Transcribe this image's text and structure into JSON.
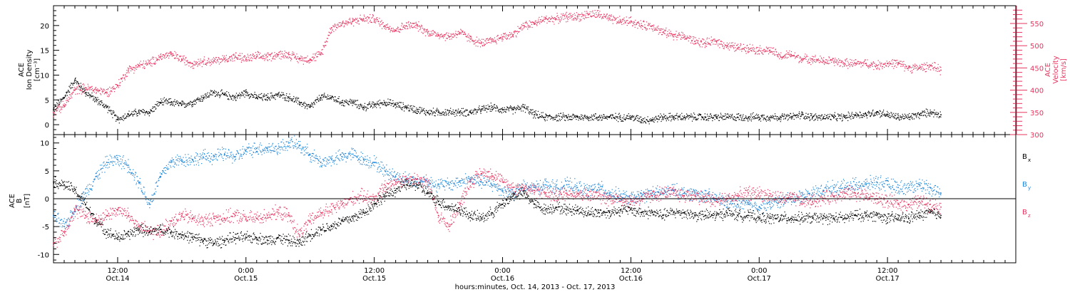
{
  "colors": {
    "black": "#000000",
    "red": "#e8345f",
    "blue": "#1e86d9"
  },
  "chart_data": [
    {
      "type": "scatter",
      "panel": "top",
      "left_axis": {
        "label_lines": [
          "ACE",
          "Ion Density",
          "[cm⁻³]"
        ],
        "ylim": [
          -2,
          24
        ],
        "ticks": [
          0,
          5,
          10,
          15,
          20
        ],
        "tick_labels": [
          "0",
          "5",
          "10",
          "15",
          "20"
        ]
      },
      "right_axis": {
        "label_lines": [
          "ACE",
          "Velocity",
          "[km/s]"
        ],
        "ylim": [
          300,
          590
        ],
        "ticks": [
          300,
          350,
          400,
          450,
          500,
          550
        ],
        "tick_labels": [
          "300",
          "350",
          "400",
          "450",
          "500",
          "550"
        ]
      },
      "series": [
        {
          "axis": "left",
          "color": "#000000",
          "t": [
            6,
            7,
            8,
            9,
            10,
            11,
            12,
            13,
            14,
            15,
            16,
            17,
            18,
            19,
            20,
            21,
            22,
            23,
            24,
            25,
            26,
            27,
            28,
            29,
            30,
            31,
            32,
            33,
            34,
            35,
            36,
            37,
            38,
            39,
            40,
            41,
            42,
            43,
            44,
            45,
            46,
            47,
            48,
            49,
            50,
            51,
            52,
            53,
            54,
            55,
            56,
            57,
            58,
            59,
            60,
            61,
            62,
            63,
            64,
            65,
            66,
            67,
            68,
            69,
            70,
            71,
            72,
            73,
            74,
            75,
            76,
            77,
            78,
            79,
            80,
            81,
            82,
            83,
            84,
            85,
            86,
            87,
            88,
            89
          ],
          "values": [
            3.0,
            5.5,
            9.0,
            6.5,
            5.0,
            3.5,
            1.0,
            2.0,
            2.5,
            2.5,
            4.5,
            4.5,
            4.0,
            4.5,
            5.5,
            6.5,
            6.0,
            5.5,
            6.5,
            5.5,
            5.5,
            6.0,
            5.5,
            4.5,
            3.5,
            5.5,
            5.5,
            4.5,
            4.5,
            3.5,
            4.0,
            4.5,
            4.0,
            3.5,
            3.0,
            2.5,
            2.5,
            2.5,
            2.5,
            2.5,
            3.0,
            3.5,
            3.0,
            3.0,
            3.5,
            2.0,
            1.5,
            1.5,
            1.5,
            1.5,
            1.5,
            1.5,
            1.5,
            1.5,
            1.5,
            1.0,
            1.0,
            1.5,
            1.5,
            1.5,
            1.5,
            1.5,
            1.5,
            1.5,
            1.5,
            1.5,
            1.5,
            1.5,
            1.5,
            1.5,
            2.0,
            1.5,
            1.5,
            1.5,
            1.5,
            2.0,
            2.0,
            2.5,
            2.0,
            1.5,
            1.5,
            2.0,
            2.5,
            2.0
          ]
        },
        {
          "axis": "right",
          "color": "#e8345f",
          "t": [
            6,
            7,
            8,
            9,
            10,
            11,
            12,
            13,
            14,
            15,
            16,
            17,
            18,
            19,
            20,
            21,
            22,
            23,
            24,
            25,
            26,
            27,
            28,
            29,
            30,
            31,
            32,
            33,
            34,
            35,
            36,
            37,
            38,
            39,
            40,
            41,
            42,
            43,
            44,
            45,
            46,
            47,
            48,
            49,
            50,
            51,
            52,
            53,
            54,
            55,
            56,
            57,
            58,
            59,
            60,
            61,
            62,
            63,
            64,
            65,
            66,
            67,
            68,
            69,
            70,
            71,
            72,
            73,
            74,
            75,
            76,
            77,
            78,
            79,
            80,
            81,
            82,
            83,
            84,
            85,
            86,
            87,
            88,
            89
          ],
          "values": [
            350,
            365,
            400,
            405,
            400,
            395,
            410,
            445,
            455,
            460,
            475,
            480,
            470,
            460,
            465,
            465,
            470,
            475,
            470,
            475,
            475,
            480,
            480,
            470,
            470,
            480,
            540,
            550,
            555,
            560,
            560,
            545,
            535,
            545,
            545,
            530,
            525,
            520,
            530,
            515,
            505,
            510,
            520,
            525,
            545,
            550,
            560,
            560,
            565,
            565,
            570,
            570,
            560,
            555,
            555,
            545,
            545,
            530,
            525,
            520,
            510,
            505,
            510,
            500,
            495,
            495,
            490,
            490,
            475,
            480,
            470,
            470,
            465,
            465,
            460,
            460,
            460,
            455,
            460,
            460,
            450,
            450,
            455,
            445
          ]
        }
      ]
    },
    {
      "type": "scatter",
      "panel": "bottom",
      "left_axis": {
        "label_lines": [
          "ACE",
          "B",
          "[nT]"
        ],
        "ylim": [
          -11.5,
          11.5
        ],
        "ticks": [
          -10,
          -5,
          0,
          5,
          10
        ],
        "tick_labels": [
          "-10",
          "-5",
          "0",
          "5",
          "10"
        ]
      },
      "zero_line": true,
      "legend": [
        {
          "label": "B",
          "sub": "x",
          "color": "#000000"
        },
        {
          "label": "B",
          "sub": "y",
          "color": "#1e86d9"
        },
        {
          "label": "B",
          "sub": "z",
          "color": "#e8345f"
        }
      ],
      "series": [
        {
          "name": "Bx",
          "color": "#000000",
          "t": [
            6,
            7,
            8,
            9,
            10,
            11,
            12,
            13,
            14,
            15,
            16,
            17,
            18,
            19,
            20,
            21,
            22,
            23,
            24,
            25,
            26,
            27,
            28,
            29,
            30,
            31,
            32,
            33,
            34,
            35,
            36,
            37,
            38,
            39,
            40,
            41,
            42,
            43,
            44,
            45,
            46,
            47,
            48,
            49,
            50,
            51,
            52,
            53,
            54,
            55,
            56,
            57,
            58,
            59,
            60,
            61,
            62,
            63,
            64,
            65,
            66,
            67,
            68,
            69,
            70,
            71,
            72,
            73,
            74,
            75,
            76,
            77,
            78,
            79,
            80,
            81,
            82,
            83,
            84,
            85,
            86,
            87,
            88,
            89
          ],
          "values": [
            3.0,
            2.5,
            1.5,
            -1.0,
            -4.0,
            -6.0,
            -7.0,
            -6.5,
            -5.5,
            -6.0,
            -5.5,
            -6.0,
            -6.5,
            -7.0,
            -7.5,
            -8.0,
            -7.5,
            -7.0,
            -7.0,
            -7.0,
            -7.5,
            -7.0,
            -7.5,
            -8.0,
            -6.5,
            -5.5,
            -5.0,
            -4.0,
            -3.5,
            -2.5,
            -1.0,
            0.5,
            1.5,
            2.5,
            2.5,
            1.0,
            -0.5,
            -1.5,
            -2.0,
            -3.0,
            -3.5,
            -2.5,
            -1.0,
            0.5,
            1.0,
            -1.0,
            -2.0,
            -1.5,
            -2.0,
            -2.0,
            -2.5,
            -2.5,
            -2.5,
            -2.0,
            -2.0,
            -2.5,
            -2.5,
            -3.0,
            -2.5,
            -2.5,
            -3.0,
            -3.0,
            -3.0,
            -2.5,
            -3.0,
            -3.0,
            -3.5,
            -3.5,
            -3.5,
            -3.5,
            -3.5,
            -3.5,
            -3.5,
            -3.5,
            -3.5,
            -3.0,
            -3.0,
            -3.0,
            -3.5,
            -3.5,
            -3.5,
            -3.0,
            -2.5,
            -3.0
          ]
        },
        {
          "name": "By",
          "color": "#1e86d9",
          "t": [
            6,
            7,
            8,
            9,
            10,
            11,
            12,
            13,
            14,
            15,
            16,
            17,
            18,
            19,
            20,
            21,
            22,
            23,
            24,
            25,
            26,
            27,
            28,
            29,
            30,
            31,
            32,
            33,
            34,
            35,
            36,
            37,
            38,
            39,
            40,
            41,
            42,
            43,
            44,
            45,
            46,
            47,
            48,
            49,
            50,
            51,
            52,
            53,
            54,
            55,
            56,
            57,
            58,
            59,
            60,
            61,
            62,
            63,
            64,
            65,
            66,
            67,
            68,
            69,
            70,
            71,
            72,
            73,
            74,
            75,
            76,
            77,
            78,
            79,
            80,
            81,
            82,
            83,
            84,
            85,
            86,
            87,
            88,
            89
          ],
          "values": [
            -3.0,
            -5.0,
            -2.0,
            1.0,
            4.0,
            6.5,
            7.0,
            6.0,
            3.0,
            -1.0,
            4.0,
            6.5,
            7.0,
            7.0,
            7.5,
            7.5,
            8.0,
            7.5,
            8.5,
            9.0,
            9.0,
            9.0,
            10.0,
            9.5,
            8.0,
            6.5,
            7.0,
            7.5,
            8.0,
            7.0,
            6.5,
            5.0,
            4.0,
            3.5,
            3.0,
            3.0,
            2.5,
            2.5,
            3.0,
            3.5,
            3.0,
            2.5,
            1.5,
            1.0,
            2.0,
            2.0,
            2.5,
            2.0,
            2.5,
            2.0,
            1.5,
            2.0,
            1.0,
            0.5,
            0.0,
            0.5,
            1.0,
            1.0,
            1.5,
            1.0,
            1.0,
            0.5,
            0.0,
            -0.5,
            -1.0,
            -1.0,
            -1.5,
            -1.0,
            -0.5,
            0.0,
            0.5,
            1.0,
            1.5,
            2.0,
            2.0,
            2.5,
            2.5,
            3.0,
            2.5,
            2.0,
            2.0,
            2.5,
            2.0,
            1.0
          ]
        },
        {
          "name": "Bz",
          "color": "#e8345f",
          "t": [
            6,
            7,
            8,
            9,
            10,
            11,
            12,
            13,
            14,
            15,
            16,
            17,
            18,
            19,
            20,
            21,
            22,
            23,
            24,
            25,
            26,
            27,
            28,
            29,
            30,
            31,
            32,
            33,
            34,
            35,
            36,
            37,
            38,
            39,
            40,
            41,
            42,
            43,
            44,
            45,
            46,
            47,
            48,
            49,
            50,
            51,
            52,
            53,
            54,
            55,
            56,
            57,
            58,
            59,
            60,
            61,
            62,
            63,
            64,
            65,
            66,
            67,
            68,
            69,
            70,
            71,
            72,
            73,
            74,
            75,
            76,
            77,
            78,
            79,
            80,
            81,
            82,
            83,
            84,
            85,
            86,
            87,
            88,
            89
          ],
          "values": [
            -8.0,
            -6.0,
            -2.0,
            -3.0,
            -4.0,
            -3.0,
            -2.0,
            -3.0,
            -5.0,
            -6.0,
            -6.0,
            -4.0,
            -3.0,
            -3.5,
            -4.0,
            -3.5,
            -3.5,
            -3.0,
            -3.5,
            -3.5,
            -3.0,
            -2.5,
            -3.0,
            -6.5,
            -4.0,
            -2.5,
            -2.0,
            -1.0,
            0.0,
            0.5,
            0.0,
            2.0,
            3.0,
            3.5,
            3.5,
            3.0,
            -3.0,
            -5.0,
            -1.0,
            3.0,
            4.5,
            4.5,
            3.0,
            2.0,
            2.0,
            1.5,
            1.0,
            0.5,
            1.0,
            1.0,
            0.5,
            0.5,
            0.0,
            0.0,
            -0.5,
            0.0,
            0.5,
            1.0,
            1.0,
            0.5,
            0.5,
            0.0,
            -0.5,
            0.0,
            0.5,
            1.0,
            1.0,
            0.5,
            0.0,
            0.0,
            -0.5,
            -0.5,
            0.0,
            0.5,
            1.0,
            1.0,
            0.5,
            0.0,
            -0.5,
            -1.0,
            -1.0,
            -0.5,
            -1.0,
            -1.5
          ]
        }
      ]
    }
  ],
  "x_axis": {
    "range_hours": [
      6,
      96
    ],
    "major_ticks": [
      {
        "t": 12,
        "line1": "12:00",
        "line2": "Oct.14"
      },
      {
        "t": 24,
        "line1": "0:00",
        "line2": "Oct.15"
      },
      {
        "t": 36,
        "line1": "12:00",
        "line2": "Oct.15"
      },
      {
        "t": 48,
        "line1": "0:00",
        "line2": "Oct.16"
      },
      {
        "t": 60,
        "line1": "12:00",
        "line2": "Oct.16"
      },
      {
        "t": 72,
        "line1": "0:00",
        "line2": "Oct.17"
      },
      {
        "t": 84,
        "line1": "12:00",
        "line2": "Oct.17"
      }
    ],
    "title": "hours:minutes, Oct. 14, 2013 - Oct. 17, 2013"
  }
}
